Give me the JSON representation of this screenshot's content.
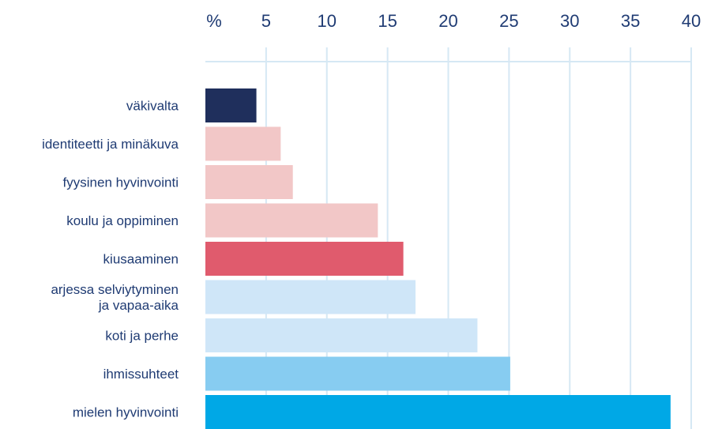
{
  "chart_data": {
    "type": "bar",
    "orientation": "horizontal",
    "x_unit_label": "%",
    "xlim": [
      0,
      40
    ],
    "x_ticks": [
      5,
      10,
      15,
      20,
      25,
      30,
      35,
      40
    ],
    "grid": true,
    "axis_position": "top",
    "categories": [
      "väkivalta",
      "identiteetti ja minäkuva",
      "fyysinen hyvinvointi",
      "koulu ja oppiminen",
      "kiusaaminen",
      "arjessa selviytyminen\nja vapaa-aika",
      "koti ja perhe",
      "ihmissuhteet",
      "mielen hyvinvointi"
    ],
    "values": [
      4.2,
      6.2,
      7.2,
      14.2,
      16.3,
      17.3,
      22.4,
      25.1,
      38.3
    ],
    "colors": [
      "#1f2f5c",
      "#f2c7c7",
      "#f2c7c7",
      "#f2c7c7",
      "#e05b6d",
      "#cfe6f8",
      "#cfe6f8",
      "#87ccf1",
      "#00a8e6"
    ],
    "title": "",
    "xlabel": "",
    "ylabel": ""
  },
  "style": {
    "text_color": "#1f3b73",
    "grid_color": "#d6e8f4"
  }
}
